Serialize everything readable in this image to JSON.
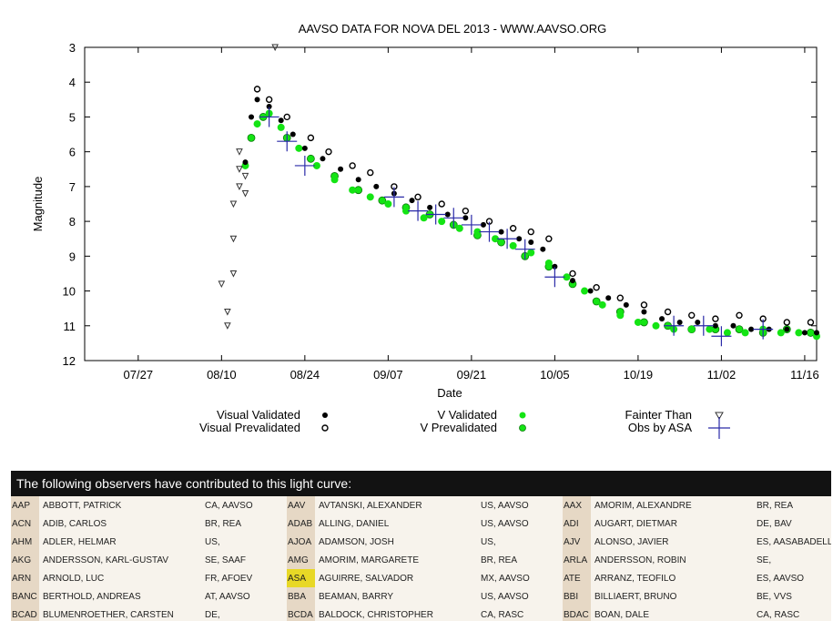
{
  "chart_data": {
    "type": "scatter",
    "title": "AAVSO DATA FOR NOVA DEL 2013 - WWW.AAVSO.ORG",
    "xlabel": "Date",
    "ylabel": "Magnitude",
    "x_ticks": [
      "07/27",
      "08/10",
      "08/24",
      "09/07",
      "09/21",
      "10/05",
      "10/19",
      "11/02",
      "11/16"
    ],
    "y_ticks": [
      "3",
      "4",
      "5",
      "6",
      "7",
      "8",
      "9",
      "10",
      "11",
      "12"
    ],
    "xlim": [
      "07/18",
      "11/18"
    ],
    "ylim": [
      12,
      3
    ],
    "y_inverted": true,
    "grid": false,
    "legend_position": "bottom",
    "legend": {
      "visual_validated": "Visual Validated",
      "visual_prevalidated": "Visual Prevalidated",
      "v_validated": "V Validated",
      "v_prevalidated": "V Prevalidated",
      "fainter_than": "Fainter Than",
      "obs_by_asa": "Obs by ASA"
    },
    "series": [
      {
        "name": "Visual Validated",
        "color": "#000000",
        "x": [
          "08/14",
          "08/15",
          "08/16",
          "08/18",
          "08/20",
          "08/22",
          "08/24",
          "08/27",
          "08/30",
          "09/02",
          "09/05",
          "09/08",
          "09/11",
          "09/14",
          "09/17",
          "09/20",
          "09/23",
          "09/26",
          "09/29",
          "10/01",
          "10/03",
          "10/05",
          "10/08",
          "10/11",
          "10/14",
          "10/17",
          "10/20",
          "10/23",
          "10/26",
          "10/29",
          "11/01",
          "11/04",
          "11/07",
          "11/10",
          "11/13",
          "11/16",
          "11/18"
        ],
        "y": [
          6.3,
          5.0,
          4.5,
          4.7,
          5.1,
          5.5,
          5.9,
          6.2,
          6.5,
          6.8,
          7.0,
          7.2,
          7.4,
          7.6,
          7.8,
          7.9,
          8.1,
          8.3,
          8.5,
          8.6,
          8.8,
          9.3,
          9.7,
          10.0,
          10.2,
          10.4,
          10.6,
          10.8,
          10.9,
          10.9,
          11.0,
          11.0,
          11.1,
          11.1,
          11.1,
          11.2,
          11.2
        ]
      },
      {
        "name": "Visual Prevalidated",
        "color": "#000000",
        "x": [
          "08/16",
          "08/18",
          "08/21",
          "08/25",
          "08/28",
          "09/01",
          "09/04",
          "09/08",
          "09/12",
          "09/16",
          "09/20",
          "09/24",
          "09/28",
          "10/01",
          "10/04",
          "10/08",
          "10/12",
          "10/16",
          "10/20",
          "10/24",
          "10/28",
          "11/01",
          "11/05",
          "11/09",
          "11/13",
          "11/17"
        ],
        "y": [
          4.2,
          4.5,
          5.0,
          5.6,
          6.0,
          6.4,
          6.6,
          7.0,
          7.3,
          7.5,
          7.7,
          8.0,
          8.2,
          8.3,
          8.5,
          9.5,
          9.9,
          10.2,
          10.4,
          10.6,
          10.7,
          10.8,
          10.7,
          10.8,
          10.9,
          10.9
        ]
      },
      {
        "name": "V Validated",
        "color": "#14e414",
        "x": [
          "08/14",
          "08/16",
          "08/18",
          "08/20",
          "08/23",
          "08/26",
          "08/29",
          "09/01",
          "09/04",
          "09/07",
          "09/10",
          "09/13",
          "09/16",
          "09/19",
          "09/22",
          "09/25",
          "09/28",
          "10/01",
          "10/04",
          "10/07",
          "10/10",
          "10/13",
          "10/16",
          "10/19",
          "10/22",
          "10/25",
          "10/28",
          "10/31",
          "11/03",
          "11/06",
          "11/09",
          "11/12",
          "11/15",
          "11/18"
        ],
        "y": [
          6.4,
          5.2,
          4.9,
          5.3,
          5.9,
          6.4,
          6.8,
          7.1,
          7.3,
          7.5,
          7.7,
          7.9,
          8.0,
          8.2,
          8.3,
          8.5,
          8.7,
          8.9,
          9.2,
          9.6,
          10.0,
          10.4,
          10.7,
          10.9,
          11.0,
          11.1,
          11.1,
          11.1,
          11.2,
          11.2,
          11.1,
          11.2,
          11.2,
          11.3
        ]
      },
      {
        "name": "V Prevalidated",
        "color": "#14e414",
        "x": [
          "08/15",
          "08/17",
          "08/21",
          "08/25",
          "08/29",
          "09/02",
          "09/06",
          "09/10",
          "09/14",
          "09/18",
          "09/22",
          "09/26",
          "09/30",
          "10/04",
          "10/08",
          "10/12",
          "10/16",
          "10/20",
          "10/24",
          "10/28",
          "11/01",
          "11/05",
          "11/09",
          "11/13",
          "11/17"
        ],
        "y": [
          5.6,
          5.0,
          5.6,
          6.2,
          6.7,
          7.1,
          7.4,
          7.6,
          7.8,
          8.1,
          8.4,
          8.6,
          9.0,
          9.3,
          9.8,
          10.3,
          10.6,
          10.9,
          11.0,
          11.1,
          11.1,
          11.1,
          11.2,
          11.1,
          11.2
        ]
      },
      {
        "name": "Fainter Than",
        "color": "#333333",
        "x": [
          "08/10",
          "08/11",
          "08/11",
          "08/12",
          "08/12",
          "08/12",
          "08/13",
          "08/13",
          "08/13",
          "08/14",
          "08/14",
          "08/19"
        ],
        "y": [
          9.8,
          10.6,
          11.0,
          9.5,
          8.5,
          7.5,
          7.0,
          6.5,
          6.0,
          7.2,
          6.7,
          3.0
        ]
      },
      {
        "name": "Obs by ASA",
        "color": "#2a2aa8",
        "x": [
          "08/18",
          "08/21",
          "08/24",
          "09/08",
          "09/12",
          "09/15",
          "09/18",
          "09/21",
          "09/24",
          "09/27",
          "09/30",
          "10/05",
          "10/25",
          "10/30",
          "11/02",
          "11/09"
        ],
        "y": [
          5.0,
          5.7,
          6.4,
          7.3,
          7.7,
          7.8,
          7.9,
          8.1,
          8.3,
          8.5,
          8.8,
          9.6,
          11.0,
          11.0,
          11.3,
          11.1
        ]
      }
    ]
  },
  "observers": {
    "header": "The following observers have contributed to this light curve:",
    "rows": [
      [
        {
          "code": "AAP",
          "name": "ABBOTT, PATRICK",
          "loc": "CA, AAVSO"
        },
        {
          "code": "AAV",
          "name": "AVTANSKI, ALEXANDER",
          "loc": "US, AAVSO"
        },
        {
          "code": "AAX",
          "name": "AMORIM, ALEXANDRE",
          "loc": "BR, REA"
        }
      ],
      [
        {
          "code": "ACN",
          "name": "ADIB, CARLOS",
          "loc": "BR, REA"
        },
        {
          "code": "ADAB",
          "name": "ALLING, DANIEL",
          "loc": "US, AAVSO"
        },
        {
          "code": "ADI",
          "name": "AUGART, DIETMAR",
          "loc": "DE, BAV"
        }
      ],
      [
        {
          "code": "AHM",
          "name": "ADLER, HELMAR",
          "loc": "US,"
        },
        {
          "code": "AJOA",
          "name": "ADAMSON, JOSH",
          "loc": "US,"
        },
        {
          "code": "AJV",
          "name": "ALONSO, JAVIER",
          "loc": "ES, AASABADELL"
        }
      ],
      [
        {
          "code": "AKG",
          "name": "ANDERSSON, KARL-GUSTAV",
          "loc": "SE, SAAF"
        },
        {
          "code": "AMG",
          "name": "AMORIM, MARGARETE",
          "loc": "BR, REA"
        },
        {
          "code": "ARLA",
          "name": "ANDERSSON, ROBIN",
          "loc": "SE,"
        }
      ],
      [
        {
          "code": "ARN",
          "name": "ARNOLD, LUC",
          "loc": "FR, AFOEV"
        },
        {
          "code": "ASA",
          "name": "AGUIRRE, SALVADOR",
          "loc": "MX, AAVSO",
          "highlight": true
        },
        {
          "code": "ATE",
          "name": "ARRANZ, TEOFILO",
          "loc": "ES, AAVSO"
        }
      ],
      [
        {
          "code": "BANC",
          "name": "BERTHOLD, ANDREAS",
          "loc": "AT, AAVSO"
        },
        {
          "code": "BBA",
          "name": "BEAMAN, BARRY",
          "loc": "US, AAVSO"
        },
        {
          "code": "BBI",
          "name": "BILLIAERT, BRUNO",
          "loc": "BE, VVS"
        }
      ],
      [
        {
          "code": "BCAD",
          "name": "BLUMENROETHER, CARSTEN",
          "loc": "DE,"
        },
        {
          "code": "BCDA",
          "name": "BALDOCK, CHRISTOPHER",
          "loc": "CA, RASC"
        },
        {
          "code": "BDAC",
          "name": "BOAN, DALE",
          "loc": "CA, RASC"
        }
      ]
    ]
  }
}
